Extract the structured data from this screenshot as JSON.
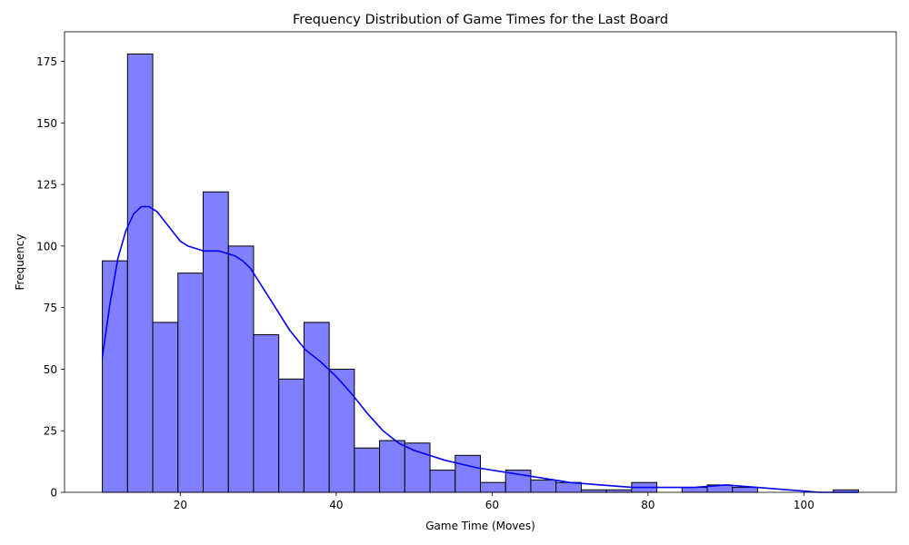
{
  "chart_data": {
    "type": "bar",
    "subtype": "histogram_with_kde",
    "title": "Frequency Distribution of Game Times for the Last Board",
    "xlabel": "Game Time (Moves)",
    "ylabel": "Frequency",
    "xlim": [
      5.15,
      111.85
    ],
    "ylim": [
      0,
      187
    ],
    "x_ticks": [
      20,
      40,
      60,
      80,
      100
    ],
    "y_ticks": [
      0,
      25,
      50,
      75,
      100,
      125,
      150,
      175
    ],
    "grid": false,
    "legend": "none",
    "bin_edges": [
      10.0,
      13.233,
      16.467,
      19.7,
      22.933,
      26.167,
      29.4,
      32.633,
      35.867,
      39.1,
      42.333,
      45.567,
      48.8,
      52.033,
      55.267,
      58.5,
      61.733,
      64.967,
      68.2,
      71.433,
      74.667,
      77.9,
      81.133,
      84.367,
      87.6,
      90.833,
      94.067,
      97.3,
      100.533,
      103.767,
      107.0
    ],
    "values": [
      94,
      178,
      69,
      89,
      122,
      100,
      64,
      46,
      69,
      50,
      18,
      21,
      20,
      9,
      15,
      4,
      9,
      5,
      4,
      1,
      1,
      4,
      0,
      2,
      3,
      2,
      0,
      0,
      0,
      1
    ],
    "kde": {
      "x": [
        10,
        11,
        12,
        13,
        14,
        15,
        16,
        17,
        18,
        19,
        20,
        21,
        22,
        23,
        24,
        25,
        26,
        27,
        28,
        29,
        30,
        32,
        34,
        36,
        38,
        40,
        42,
        44,
        46,
        48,
        50,
        54,
        58,
        62,
        66,
        70,
        74,
        78,
        82,
        86,
        90,
        94,
        98,
        102,
        107
      ],
      "y": [
        55,
        77,
        95,
        106,
        113,
        116,
        116,
        114,
        110,
        106,
        102,
        100,
        99,
        98,
        98,
        98,
        97,
        96,
        94,
        91,
        86,
        76,
        66,
        58,
        53,
        47,
        40,
        32,
        25,
        20,
        17,
        13,
        10,
        8,
        6,
        4,
        3,
        2,
        2,
        2,
        3,
        2,
        1,
        0,
        0
      ]
    },
    "colors": {
      "bar_fill": "#8080ff",
      "bar_edge": "#000000",
      "kde_line": "#0000ff"
    }
  }
}
